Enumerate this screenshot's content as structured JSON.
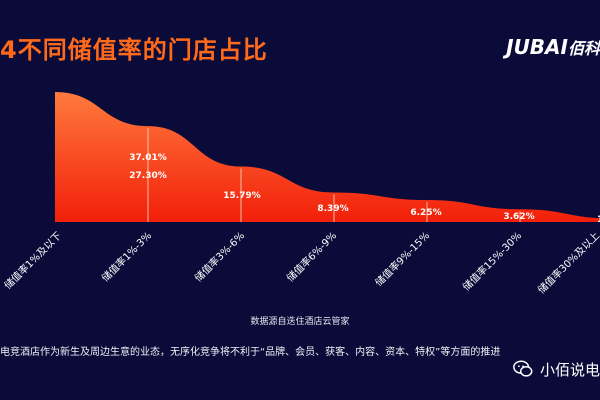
{
  "header": {
    "title": "4不同储值率的门店占比",
    "logo_mark": "JUBAI",
    "logo_cn": "佰科"
  },
  "chart_data": {
    "type": "area",
    "title": "4不同储值率的门店占比",
    "categories": [
      "储值率1%及以下",
      "储值率1%-3%",
      "储值率3%-6%",
      "储值率6%-9%",
      "储值率9%-15%",
      "储值率15%-30%",
      "储值率30%及以上"
    ],
    "values": [
      37.01,
      27.3,
      15.79,
      8.39,
      6.25,
      3.62,
      1.0
    ],
    "data_labels": [
      "37.01%",
      "27.30%",
      "15.79%",
      "8.39%",
      "6.25%",
      "3.62%",
      "1"
    ],
    "colors": {
      "area_top": "#ff7a3d",
      "area_bottom": "#f21f0a",
      "divider": "#ffd6c2",
      "label": "#ffffff",
      "tick": "#ffffff"
    }
  },
  "footer": {
    "source": "数据源自迭住酒店云管家",
    "note": "电竞酒店作为新生及周边生意的业态，无序化竞争将不利于“品牌、会员、获客、内容、资本、特权”等方面的推进",
    "watermark": "小佰说电"
  }
}
